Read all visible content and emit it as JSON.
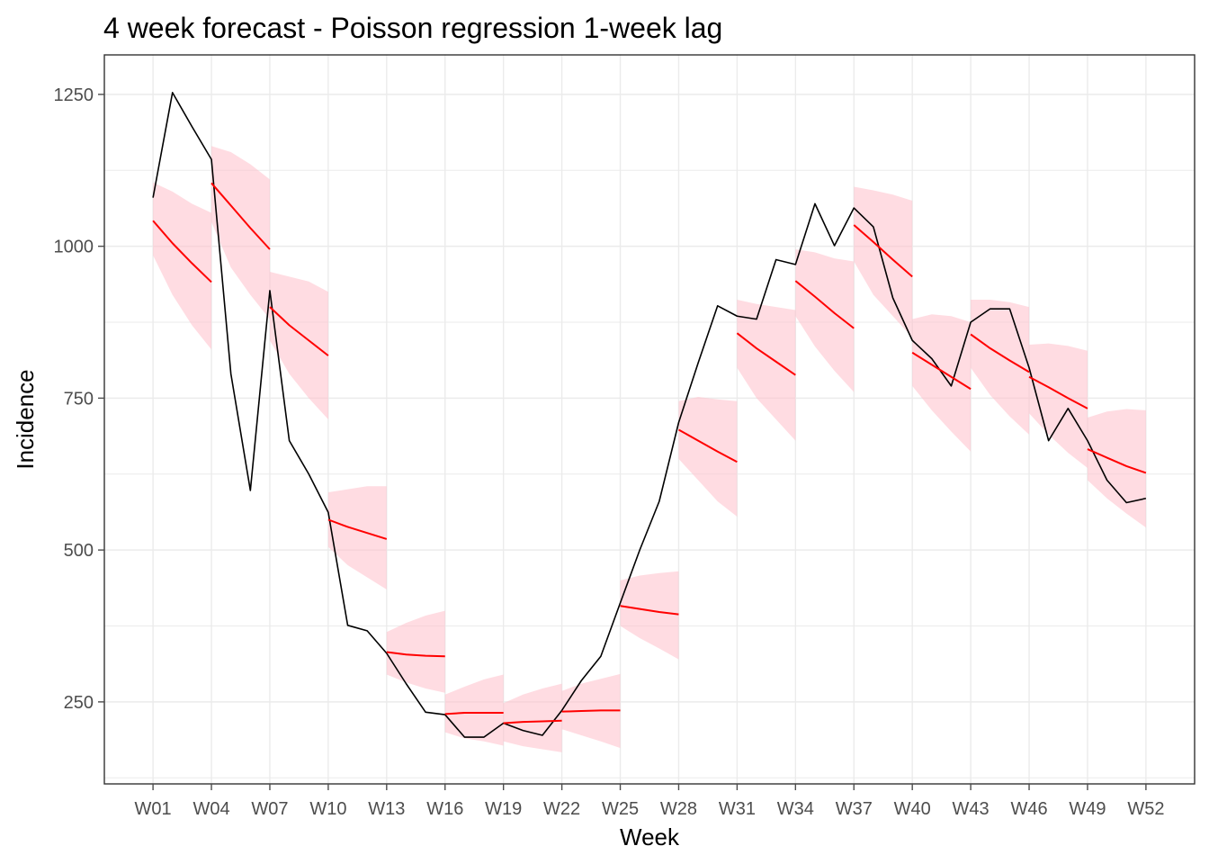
{
  "chart_data": {
    "type": "line",
    "title": "4 week forecast - Poisson regression 1-week lag",
    "xlabel": "Week",
    "ylabel": "Incidence",
    "x_tick_labels": [
      "W01",
      "W04",
      "W07",
      "W10",
      "W13",
      "W16",
      "W19",
      "W22",
      "W25",
      "W28",
      "W31",
      "W34",
      "W37",
      "W40",
      "W43",
      "W46",
      "W49",
      "W52"
    ],
    "x_tick_weeks": [
      1,
      4,
      7,
      10,
      13,
      16,
      19,
      22,
      25,
      28,
      31,
      34,
      37,
      40,
      43,
      46,
      49,
      52
    ],
    "y_ticks": [
      250,
      500,
      750,
      1000,
      1250
    ],
    "xlim": [
      -1.5,
      54.5
    ],
    "ylim": [
      115,
      1315
    ],
    "grid": true,
    "colors": {
      "observed": "#000000",
      "forecast": "#ff0000",
      "interval": "#ffc0cb",
      "grid": "#ebebeb",
      "panel_border": "#333333",
      "tick": "#4d4d4d"
    },
    "observed": {
      "weeks": [
        1,
        2,
        3,
        4,
        5,
        6,
        7,
        8,
        9,
        10,
        11,
        12,
        13,
        14,
        15,
        16,
        17,
        18,
        19,
        20,
        21,
        22,
        23,
        24,
        25,
        26,
        27,
        28,
        29,
        30,
        31,
        32,
        33,
        34,
        35,
        36,
        37,
        38,
        39,
        40,
        41,
        42,
        43,
        44,
        45,
        46,
        47,
        48,
        49,
        50,
        51,
        52
      ],
      "values": [
        1080,
        1253,
        1197,
        1143,
        790,
        598,
        927,
        680,
        625,
        562,
        376,
        367,
        330,
        280,
        233,
        229,
        192,
        192,
        215,
        203,
        195,
        236,
        285,
        325,
        413,
        500,
        580,
        710,
        808,
        902,
        885,
        880,
        978,
        970,
        1070,
        1001,
        1063,
        1032,
        915,
        845,
        815,
        770,
        875,
        897,
        897,
        800,
        680,
        733,
        680,
        615,
        578,
        585
      ]
    },
    "forecasts": [
      {
        "weeks": [
          1,
          2,
          3,
          4
        ],
        "mean": [
          1042,
          1005,
          972,
          941
        ],
        "lower": [
          985,
          920,
          870,
          830
        ],
        "upper": [
          1105,
          1090,
          1070,
          1055
        ]
      },
      {
        "weeks": [
          4,
          5,
          6,
          7
        ],
        "mean": [
          1104,
          1067,
          1030,
          995
        ],
        "lower": [
          1040,
          965,
          920,
          880
        ],
        "upper": [
          1165,
          1155,
          1135,
          1110
        ]
      },
      {
        "weeks": [
          7,
          8,
          9,
          10
        ],
        "mean": [
          900,
          870,
          845,
          820
        ],
        "lower": [
          845,
          790,
          750,
          715
        ],
        "upper": [
          958,
          950,
          942,
          925
        ]
      },
      {
        "weeks": [
          10,
          11,
          12,
          13
        ],
        "mean": [
          550,
          538,
          528,
          518
        ],
        "lower": [
          505,
          475,
          455,
          435
        ],
        "upper": [
          595,
          600,
          605,
          605
        ]
      },
      {
        "weeks": [
          13,
          14,
          15,
          16
        ],
        "mean": [
          332,
          328,
          326,
          325
        ],
        "lower": [
          295,
          282,
          272,
          265
        ],
        "upper": [
          365,
          380,
          392,
          400
        ]
      },
      {
        "weeks": [
          16,
          17,
          18,
          19
        ],
        "mean": [
          230,
          232,
          232,
          232
        ],
        "lower": [
          200,
          190,
          185,
          178
        ],
        "upper": [
          262,
          275,
          287,
          295
        ]
      },
      {
        "weeks": [
          19,
          20,
          21,
          22
        ],
        "mean": [
          215,
          217,
          218,
          219
        ],
        "lower": [
          185,
          177,
          172,
          167
        ],
        "upper": [
          248,
          262,
          272,
          280
        ]
      },
      {
        "weeks": [
          22,
          23,
          24,
          25
        ],
        "mean": [
          234,
          235,
          236,
          236
        ],
        "lower": [
          205,
          195,
          185,
          174
        ],
        "upper": [
          268,
          280,
          288,
          296
        ]
      },
      {
        "weeks": [
          25,
          26,
          27,
          28
        ],
        "mean": [
          408,
          403,
          398,
          394
        ],
        "lower": [
          375,
          355,
          338,
          320
        ],
        "upper": [
          450,
          458,
          462,
          465
        ]
      },
      {
        "weeks": [
          28,
          29,
          30,
          31
        ],
        "mean": [
          698,
          680,
          662,
          645
        ],
        "lower": [
          650,
          615,
          580,
          555
        ],
        "upper": [
          745,
          752,
          748,
          745
        ]
      },
      {
        "weeks": [
          31,
          32,
          33,
          34
        ],
        "mean": [
          857,
          832,
          810,
          788
        ],
        "lower": [
          800,
          750,
          715,
          680
        ],
        "upper": [
          912,
          905,
          900,
          895
        ]
      },
      {
        "weeks": [
          34,
          35,
          36,
          37
        ],
        "mean": [
          943,
          917,
          890,
          865
        ],
        "lower": [
          885,
          835,
          795,
          760
        ],
        "upper": [
          995,
          990,
          980,
          975
        ]
      },
      {
        "weeks": [
          37,
          38,
          39,
          40
        ],
        "mean": [
          1035,
          1007,
          978,
          950
        ],
        "lower": [
          975,
          920,
          885,
          850
        ],
        "upper": [
          1098,
          1092,
          1085,
          1075
        ]
      },
      {
        "weeks": [
          40,
          41,
          42,
          43
        ],
        "mean": [
          825,
          805,
          785,
          765
        ],
        "lower": [
          770,
          730,
          695,
          662
        ],
        "upper": [
          880,
          888,
          885,
          875
        ]
      },
      {
        "weeks": [
          43,
          44,
          45,
          46
        ],
        "mean": [
          855,
          832,
          812,
          793
        ],
        "lower": [
          800,
          755,
          720,
          690
        ],
        "upper": [
          912,
          912,
          908,
          900
        ]
      },
      {
        "weeks": [
          46,
          47,
          48,
          49
        ],
        "mean": [
          785,
          768,
          750,
          733
        ],
        "lower": [
          725,
          690,
          660,
          635
        ],
        "upper": [
          838,
          840,
          836,
          828
        ]
      },
      {
        "weeks": [
          49,
          50,
          51,
          52
        ],
        "mean": [
          666,
          652,
          638,
          627
        ],
        "lower": [
          615,
          585,
          560,
          537
        ],
        "upper": [
          718,
          728,
          732,
          730
        ]
      }
    ]
  }
}
